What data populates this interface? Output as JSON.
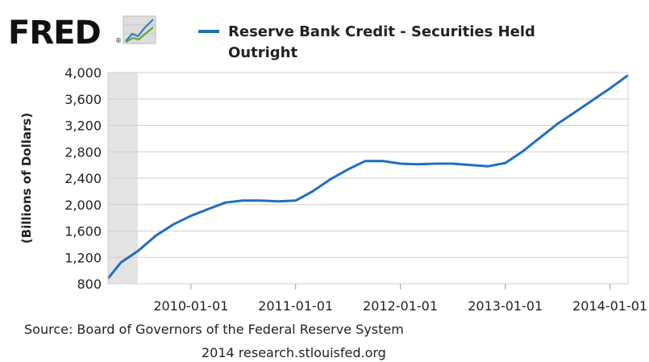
{
  "logo": {
    "text": "FRED",
    "mark": "®"
  },
  "legend": {
    "label_line1": "Reserve Bank Credit - Securities Held",
    "label_line2": "Outright",
    "color": "#1f6fbf",
    "position": "top"
  },
  "footer": {
    "source": "Source: Board of Governors of the Federal Reserve System",
    "credit": "2014 research.stlouisfed.org"
  },
  "chart_data": {
    "type": "line",
    "title": "",
    "xlabel": "",
    "ylabel": "(Billions of Dollars)",
    "ylim": [
      800,
      4000
    ],
    "yticks": [
      800,
      1200,
      1600,
      2000,
      2400,
      2800,
      3200,
      3600,
      4000
    ],
    "ytick_labels": [
      "800",
      "1,200",
      "1,600",
      "2,000",
      "2,400",
      "2,800",
      "3,200",
      "3,600",
      "4,000"
    ],
    "xlim": [
      "2009-03-18",
      "2014-03-05"
    ],
    "xticks": [
      "2010-01-01",
      "2011-01-01",
      "2012-01-01",
      "2013-01-01",
      "2014-01-01"
    ],
    "grid": true,
    "recession_shading": [
      "2009-03-18",
      "2009-06-30"
    ],
    "series": [
      {
        "name": "Reserve Bank Credit - Securities Held Outright",
        "color": "#1f6fbf",
        "x": [
          "2009-03-18",
          "2009-05-01",
          "2009-07-01",
          "2009-09-01",
          "2009-11-01",
          "2010-01-01",
          "2010-03-01",
          "2010-05-01",
          "2010-07-01",
          "2010-09-01",
          "2010-11-01",
          "2011-01-01",
          "2011-03-01",
          "2011-05-01",
          "2011-07-01",
          "2011-09-01",
          "2011-11-01",
          "2012-01-01",
          "2012-03-01",
          "2012-05-01",
          "2012-07-01",
          "2012-09-01",
          "2012-11-01",
          "2013-01-01",
          "2013-03-01",
          "2013-05-01",
          "2013-07-01",
          "2013-09-01",
          "2013-11-01",
          "2014-01-01",
          "2014-03-05"
        ],
        "values": [
          880,
          1120,
          1300,
          1530,
          1700,
          1830,
          1930,
          2030,
          2060,
          2060,
          2050,
          2060,
          2200,
          2380,
          2530,
          2660,
          2660,
          2620,
          2610,
          2620,
          2620,
          2600,
          2580,
          2630,
          2800,
          3010,
          3220,
          3400,
          3580,
          3760,
          3960
        ]
      }
    ]
  }
}
